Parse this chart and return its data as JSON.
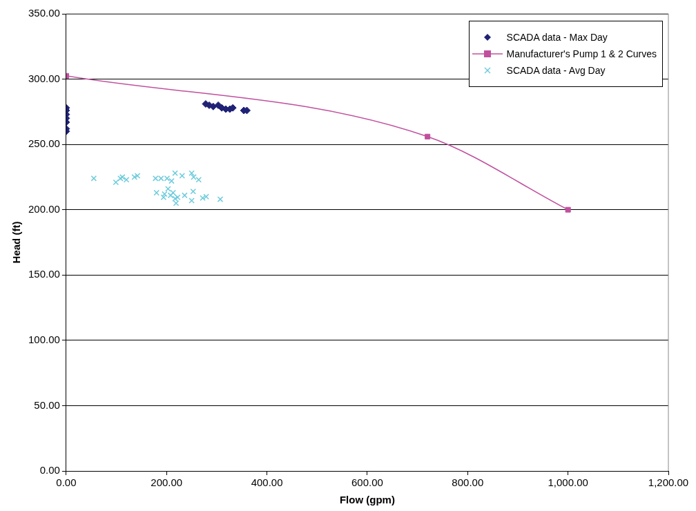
{
  "chart_data": {
    "type": "scatter",
    "xlabel": "Flow (gpm)",
    "ylabel": "Head (ft)",
    "xlim": [
      0,
      1200
    ],
    "xticks": [
      {
        "value": 0,
        "label": "0.00"
      },
      {
        "value": 200,
        "label": "200.00"
      },
      {
        "value": 400,
        "label": "400.00"
      },
      {
        "value": 600,
        "label": "600.00"
      },
      {
        "value": 800,
        "label": "800.00"
      },
      {
        "value": 1000,
        "label": "1,000.00"
      },
      {
        "value": 1200,
        "label": "1,200.00"
      }
    ],
    "ylim": [
      0,
      350
    ],
    "yticks": [
      {
        "value": 0,
        "label": "0.00"
      },
      {
        "value": 50,
        "label": "50.00"
      },
      {
        "value": 100,
        "label": "100.00"
      },
      {
        "value": 150,
        "label": "150.00"
      },
      {
        "value": 200,
        "label": "200.00"
      },
      {
        "value": 250,
        "label": "250.00"
      },
      {
        "value": 300,
        "label": "300.00"
      },
      {
        "value": 350,
        "label": "350.00"
      }
    ],
    "grid": "y",
    "legend": "top right",
    "series": [
      {
        "name": "SCADA data - Max Day",
        "marker": "diamond",
        "color": "#1f2275",
        "x": [
          0,
          0,
          0,
          0,
          0,
          0,
          0,
          278,
          285,
          293,
          303,
          310,
          318,
          326,
          332,
          354,
          360
        ],
        "values": [
          278,
          276,
          273,
          270,
          267,
          262,
          260,
          281,
          280,
          279,
          280,
          278,
          277,
          277,
          278,
          276,
          276
        ]
      },
      {
        "name": "Manufacturer's Pump 1 & 2 Curves",
        "type": "line",
        "marker": "square",
        "line_style": "solid",
        "color": "#c0509e",
        "x": [
          0,
          720,
          1000
        ],
        "values": [
          302.5,
          256,
          200
        ]
      },
      {
        "name": "SCADA data - Avg Day",
        "marker": "cross",
        "color": "#6ccbdc",
        "x": [
          55,
          99,
          108,
          112,
          120,
          136,
          142,
          178,
          189,
          201,
          210,
          217,
          231,
          250,
          254,
          264,
          180,
          196,
          203,
          208,
          213,
          217,
          222,
          219,
          236,
          253,
          250,
          272,
          279,
          307,
          194
        ],
        "values": [
          224,
          221,
          224,
          225,
          223,
          225,
          226,
          224,
          224,
          224,
          222,
          228,
          226,
          228,
          225,
          223,
          213,
          212,
          216,
          211,
          213,
          208.5,
          209.5,
          205,
          211,
          214,
          207,
          209,
          210,
          208,
          209.5
        ]
      }
    ]
  }
}
